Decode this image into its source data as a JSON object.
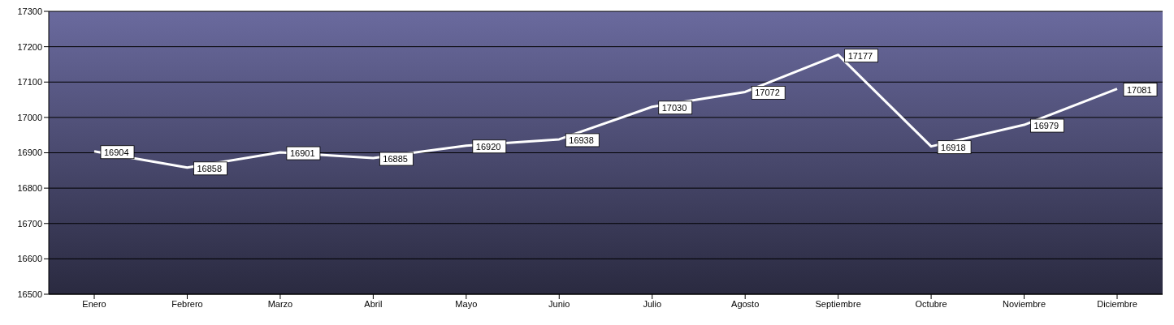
{
  "chart_data": {
    "type": "line",
    "categories": [
      "Enero",
      "Febrero",
      "Marzo",
      "Abril",
      "Mayo",
      "Junio",
      "Julio",
      "Agosto",
      "Septiembre",
      "Octubre",
      "Noviembre",
      "Diciembre"
    ],
    "series": [
      {
        "color": "#ffffff",
        "values": [
          16904,
          16858,
          16901,
          16885,
          16920,
          16938,
          17030,
          17072,
          17177,
          16918,
          16979,
          17081
        ]
      }
    ],
    "ylim": [
      16500,
      17300
    ],
    "yticks": [
      16500,
      16600,
      16700,
      16800,
      16900,
      17000,
      17100,
      17200,
      17300
    ],
    "grid": "y",
    "data_labels": true,
    "marker": "none",
    "line_style": "solid"
  }
}
